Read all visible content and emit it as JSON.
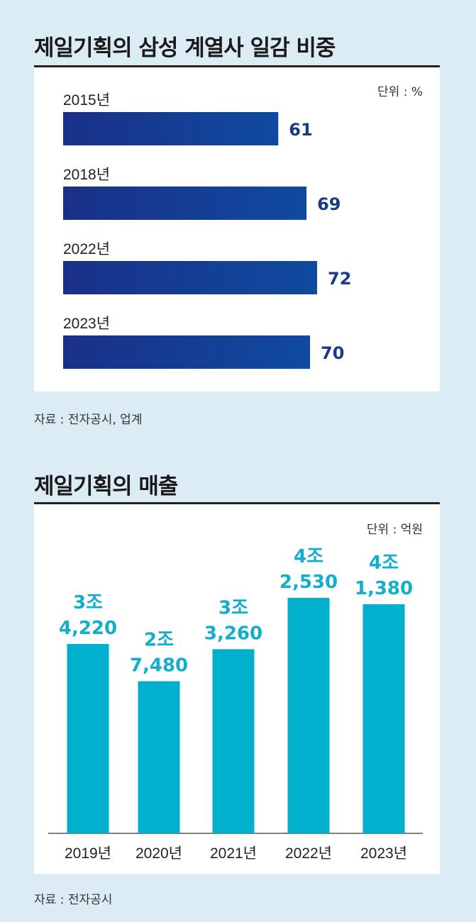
{
  "chart_data": [
    {
      "type": "bar",
      "orientation": "horizontal",
      "title": "제일기획의 삼성 계열사 일감 비중",
      "unit_label": "단위 : %",
      "categories": [
        "2015년",
        "2018년",
        "2022년",
        "2023년"
      ],
      "values": [
        61,
        69,
        72,
        70
      ],
      "value_labels": [
        "61",
        "69",
        "72",
        "70"
      ],
      "xlim": [
        0,
        100
      ],
      "source": "자료 : 전자공시, 업계",
      "color": "#1b3a8a"
    },
    {
      "type": "bar",
      "orientation": "vertical",
      "title": "제일기획의 매출",
      "unit_label": "단위 : 억원",
      "categories": [
        "2019년",
        "2020년",
        "2021년",
        "2022년",
        "2023년"
      ],
      "values": [
        34220,
        27480,
        33260,
        42530,
        41380
      ],
      "value_labels": [
        [
          "3조",
          "4,220"
        ],
        [
          "2조",
          "7,480"
        ],
        [
          "3조",
          "3,260"
        ],
        [
          "4조",
          "2,530"
        ],
        [
          "4조",
          "1,380"
        ]
      ],
      "ylim": [
        0,
        45000
      ],
      "source": "자료 : 전자공시",
      "color": "#00b0cc"
    }
  ]
}
